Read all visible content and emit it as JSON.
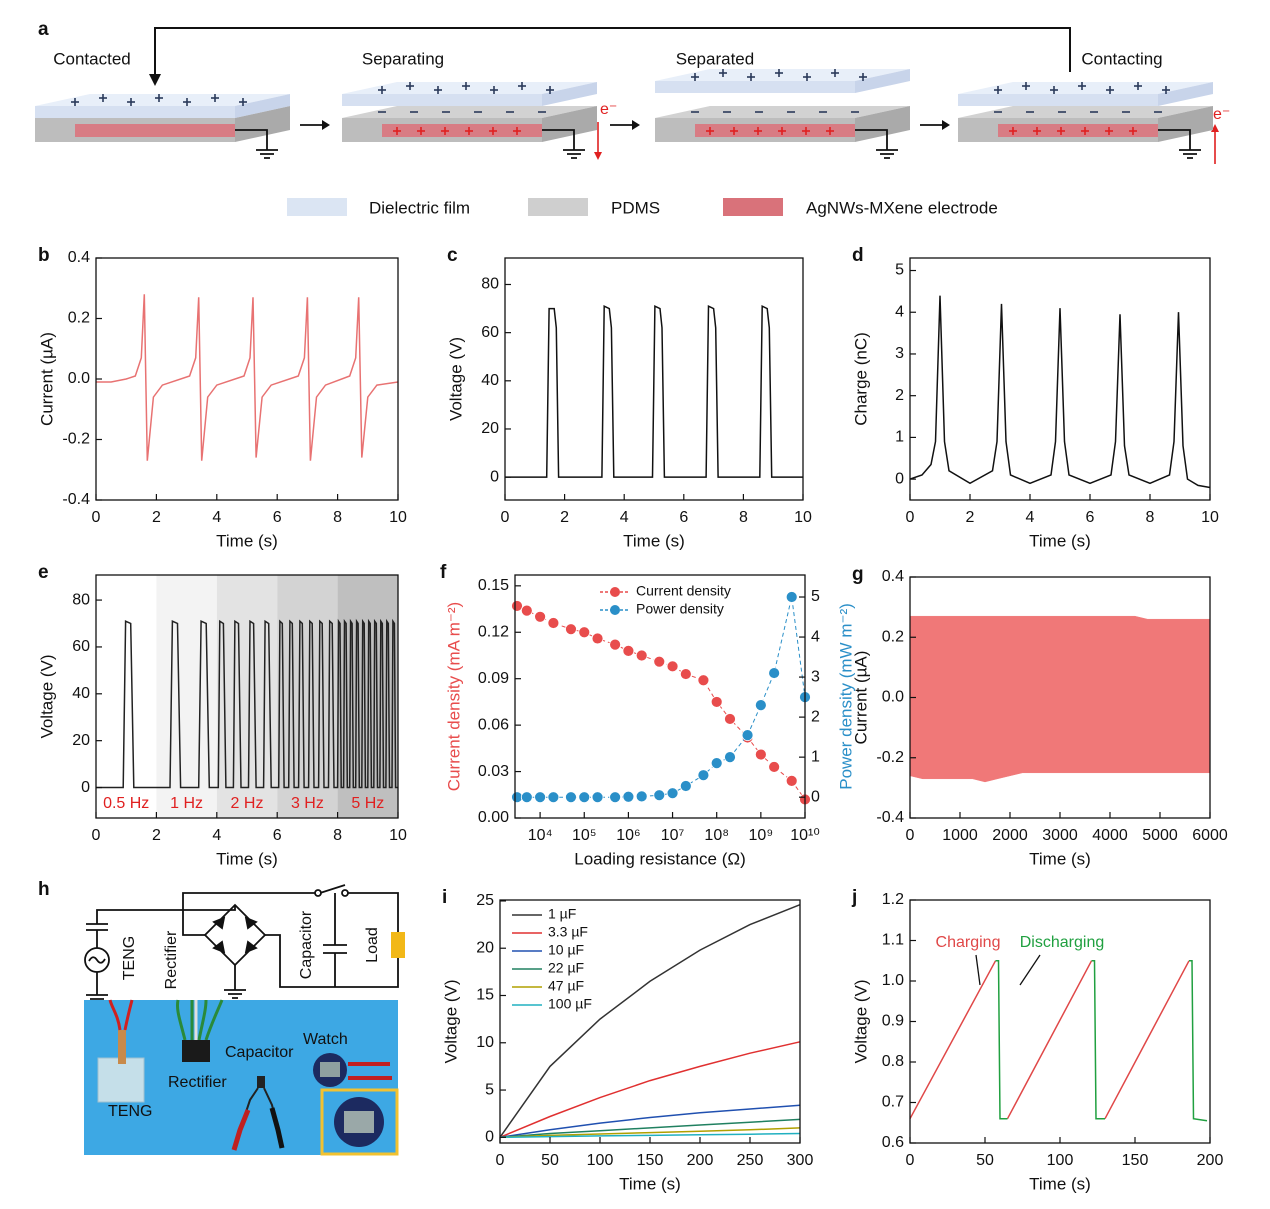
{
  "diagram": {
    "label": "a",
    "stages": [
      "Contacted",
      "Separating",
      "Separated",
      "Contacting"
    ],
    "electron": "e⁻",
    "legend": [
      "Dielectric film",
      "PDMS",
      "AgNWs-MXene electrode"
    ]
  },
  "circuit": {
    "label": "h",
    "parts": [
      "TENG",
      "Rectifier",
      "Capacitor",
      "Load"
    ],
    "photo": [
      "TENG",
      "Rectifier",
      "Capacitor",
      "Watch"
    ]
  },
  "chart_data": [
    {
      "label": "b",
      "type": "line",
      "xlabel": "Time (s)",
      "ylabel": "Current (µA)",
      "x": [
        0,
        0.5,
        1,
        1.3,
        1.5,
        1.6,
        1.65,
        1.7,
        1.9,
        2.2,
        3.1,
        3.3,
        3.4,
        3.45,
        3.5,
        3.7,
        4,
        4.9,
        5.1,
        5.2,
        5.25,
        5.3,
        5.5,
        5.8,
        6.7,
        6.9,
        7,
        7.05,
        7.1,
        7.3,
        7.6,
        8.4,
        8.6,
        8.7,
        8.75,
        8.8,
        9,
        9.3,
        10
      ],
      "series": [
        {
          "color": "#e87272",
          "values": [
            -0.01,
            -0.01,
            0,
            0.01,
            0.07,
            0.28,
            0,
            -0.27,
            -0.06,
            -0.02,
            0.01,
            0.07,
            0.27,
            0,
            -0.27,
            -0.06,
            -0.02,
            0.01,
            0.07,
            0.27,
            0,
            -0.26,
            -0.06,
            -0.02,
            0.01,
            0.07,
            0.27,
            0,
            -0.27,
            -0.06,
            -0.02,
            0.01,
            0.07,
            0.27,
            0,
            -0.26,
            -0.06,
            -0.02,
            -0.01
          ]
        }
      ],
      "xlim": [
        0,
        10
      ],
      "ylim": [
        -0.4,
        0.4
      ],
      "xticks": [
        0,
        2,
        4,
        6,
        8,
        10
      ],
      "yticks": [
        -0.4,
        -0.2,
        {
          "value": 0,
          "label": "0.0"
        },
        0.2,
        0.4
      ]
    },
    {
      "label": "c",
      "type": "line",
      "xlabel": "Time (s)",
      "ylabel": "Voltage (V)",
      "x": [
        0,
        1.4,
        1.48,
        1.65,
        1.72,
        1.8,
        3.25,
        3.33,
        3.5,
        3.57,
        3.65,
        4.95,
        5.03,
        5.2,
        5.27,
        5.35,
        6.75,
        6.83,
        7,
        7.07,
        7.15,
        8.55,
        8.63,
        8.8,
        8.87,
        8.95,
        10
      ],
      "series": [
        {
          "color": "#111111",
          "values": [
            0,
            0,
            70,
            70,
            62,
            0,
            0,
            71,
            70,
            62,
            0,
            0,
            71,
            70,
            62,
            0,
            0,
            71,
            70,
            62,
            0,
            0,
            71,
            70,
            62,
            0,
            0
          ]
        }
      ],
      "xlim": [
        0,
        10
      ],
      "ylim": [
        -9.5,
        91
      ],
      "xticks": [
        0,
        2,
        4,
        6,
        8,
        10
      ],
      "yticks": [
        0,
        20,
        40,
        60,
        80
      ]
    },
    {
      "label": "d",
      "type": "line",
      "xlabel": "Time (s)",
      "ylabel": "Charge (nC)",
      "x": [
        0,
        0.4,
        0.7,
        0.85,
        1,
        1.15,
        1.3,
        2,
        2.75,
        2.9,
        3.05,
        3.2,
        3.35,
        4,
        4.7,
        4.85,
        5,
        5.15,
        5.3,
        6,
        6.7,
        6.85,
        7,
        7.15,
        7.3,
        8,
        8.65,
        8.8,
        8.95,
        9.1,
        9.25,
        9.6,
        10
      ],
      "series": [
        {
          "color": "#111111",
          "values": [
            0,
            0.1,
            0.35,
            0.9,
            4.4,
            0.9,
            0.2,
            -0.1,
            0.2,
            0.9,
            4.2,
            0.9,
            0.1,
            -0.1,
            0.1,
            0.9,
            4.1,
            0.9,
            0.1,
            -0.1,
            0.1,
            0.9,
            3.95,
            0.8,
            0.1,
            -0.1,
            0.1,
            0.9,
            4,
            0.8,
            0,
            -0.15,
            -0.2
          ]
        }
      ],
      "xlim": [
        0,
        10
      ],
      "ylim": [
        -0.5,
        5.3
      ],
      "xticks": [
        0,
        2,
        4,
        6,
        8,
        10
      ],
      "yticks": [
        0,
        1,
        2,
        3,
        4,
        5
      ]
    },
    {
      "label": "e",
      "type": "line",
      "xlabel": "Time (s)",
      "ylabel": "Voltage (V)",
      "band_label_color": "#e02020",
      "bands": [
        {
          "range": [
            0,
            2
          ],
          "label": "0.5 Hz",
          "color": "#ffffff"
        },
        {
          "range": [
            2,
            4
          ],
          "label": "1 Hz",
          "color": "#f3f3f3"
        },
        {
          "range": [
            4,
            6
          ],
          "label": "2 Hz",
          "color": "#e3e3e3"
        },
        {
          "range": [
            6,
            8
          ],
          "label": "3 Hz",
          "color": "#d3d3d3"
        },
        {
          "range": [
            8,
            10
          ],
          "label": "5 Hz",
          "color": "#bfbfbf"
        }
      ],
      "x": [
        0,
        0.9,
        0.98,
        1.15,
        1.25,
        2.45,
        2.53,
        2.7,
        2.8,
        3.4,
        3.48,
        3.65,
        3.75,
        4.05,
        4.1,
        4.22,
        4.3,
        4.55,
        4.6,
        4.72,
        4.8,
        5.05,
        5.1,
        5.22,
        5.3,
        5.55,
        5.6,
        5.72,
        5.8,
        6.05,
        6.09,
        6.17,
        6.23,
        6.38,
        6.42,
        6.5,
        6.56,
        6.71,
        6.75,
        6.83,
        6.89,
        7.04,
        7.08,
        7.16,
        7.22,
        7.37,
        7.41,
        7.49,
        7.55,
        7.7,
        7.74,
        7.82,
        7.88,
        8,
        8.03,
        8.08,
        8.12,
        8.2,
        8.23,
        8.28,
        8.32,
        8.4,
        8.43,
        8.48,
        8.52,
        8.6,
        8.63,
        8.68,
        8.72,
        8.8,
        8.83,
        8.88,
        8.92,
        9,
        9.03,
        9.08,
        9.12,
        9.2,
        9.23,
        9.28,
        9.32,
        9.4,
        9.43,
        9.48,
        9.52,
        9.6,
        9.63,
        9.68,
        9.72,
        9.8,
        9.83,
        9.88,
        9.92,
        10
      ],
      "series": [
        {
          "color": "#222222",
          "values": [
            0,
            0,
            71,
            70,
            0,
            0,
            71,
            70,
            0,
            0,
            71,
            70,
            0,
            0,
            71,
            70,
            0,
            0,
            71,
            70,
            0,
            0,
            71,
            70,
            0,
            0,
            71,
            70,
            0,
            0,
            71,
            70,
            0,
            0,
            71,
            70,
            0,
            0,
            71,
            70,
            0,
            0,
            71,
            70,
            0,
            0,
            71,
            70,
            0,
            0,
            71,
            70,
            0,
            0,
            71,
            70,
            0,
            0,
            71,
            70,
            0,
            0,
            71,
            70,
            0,
            0,
            71,
            70,
            0,
            0,
            71,
            70,
            0,
            0,
            71,
            70,
            0,
            0,
            71,
            70,
            0,
            0,
            71,
            70,
            0,
            0,
            71,
            70,
            0,
            0,
            71,
            70,
            0,
            0
          ]
        }
      ],
      "xlim": [
        0,
        10
      ],
      "ylim": [
        -13,
        90.7
      ],
      "xticks": [
        0,
        2,
        4,
        6,
        8,
        10
      ],
      "yticks": [
        0,
        20,
        40,
        60,
        80
      ]
    },
    {
      "label": "f",
      "type": "scatter",
      "xscale": "log",
      "xlabel": "Loading resistance (Ω)",
      "ylabel": "Current density (mA m⁻²)",
      "y2label": "Power density (mW m⁻²)",
      "ylabel_color": "#e84c4c",
      "y2label_color": "#2a8fc8",
      "legend": "upper right",
      "x": [
        3000,
        5000,
        10000,
        20000,
        50000,
        100000,
        200000,
        500000,
        1000000,
        2000000,
        5000000,
        10000000,
        20000000,
        50000000,
        100000000,
        200000000,
        500000000,
        1000000000,
        2000000000,
        5000000000,
        10000000000
      ],
      "series": [
        {
          "name": "Current density",
          "color": "#e84c4c",
          "values": [
            0.137,
            0.134,
            0.13,
            0.126,
            0.122,
            0.12,
            0.116,
            0.112,
            0.108,
            0.105,
            0.101,
            0.098,
            0.093,
            0.089,
            0.075,
            0.064,
            0.052,
            0.041,
            0.033,
            0.024,
            0.012
          ]
        },
        {
          "name": "Power density",
          "color": "#2a8fc8",
          "axis": "y2",
          "values": [
            0,
            0,
            0,
            0,
            0,
            0,
            0,
            0,
            0.01,
            0.02,
            0.05,
            0.1,
            0.28,
            0.55,
            0.85,
            1,
            1.55,
            2.3,
            3.1,
            5,
            2.5
          ]
        }
      ],
      "xlim": [
        2700,
        10000000000
      ],
      "ylim": [
        0,
        0.157
      ],
      "y2lim": [
        -0.52,
        5.55
      ],
      "xticks": [
        {
          "value": 10000,
          "label": "10⁴"
        },
        {
          "value": 100000,
          "label": "10⁵"
        },
        {
          "value": 1000000,
          "label": "10⁶"
        },
        {
          "value": 10000000,
          "label": "10⁷"
        },
        {
          "value": 100000000,
          "label": "10⁸"
        },
        {
          "value": 1000000000,
          "label": "10⁹"
        },
        {
          "value": 10000000000,
          "label": "10¹⁰"
        }
      ],
      "yticks": [
        {
          "value": 0,
          "label": "0.00"
        },
        0.03,
        0.06,
        0.09,
        0.12,
        0.15
      ],
      "y2ticks": [
        0,
        1,
        2,
        3,
        4,
        5
      ]
    },
    {
      "label": "g",
      "type": "band",
      "xlabel": "Time (s)",
      "ylabel": "Current (µA)",
      "x": [
        0,
        250,
        500,
        750,
        1000,
        1250,
        1500,
        1750,
        2000,
        2250,
        2500,
        2750,
        3000,
        3250,
        3500,
        3750,
        4000,
        4250,
        4500,
        4750,
        5000,
        5250,
        5500,
        5750,
        6000
      ],
      "series": [
        {
          "color": "#f07878",
          "values": [
            0.27,
            0.27,
            0.27,
            0.27,
            0.27,
            0.27,
            0.27,
            0.27,
            0.27,
            0.27,
            0.27,
            0.27,
            0.27,
            0.27,
            0.27,
            0.27,
            0.27,
            0.27,
            0.27,
            0.26,
            0.26,
            0.26,
            0.26,
            0.26,
            0.26
          ]
        },
        {
          "color": "#f07878",
          "values": [
            -0.26,
            -0.27,
            -0.27,
            -0.27,
            -0.27,
            -0.27,
            -0.28,
            -0.27,
            -0.26,
            -0.25,
            -0.25,
            -0.25,
            -0.25,
            -0.25,
            -0.25,
            -0.25,
            -0.25,
            -0.25,
            -0.25,
            -0.25,
            -0.25,
            -0.25,
            -0.25,
            -0.25,
            -0.25
          ]
        }
      ],
      "xlim": [
        0,
        6000
      ],
      "ylim": [
        -0.4,
        0.4
      ],
      "xticks": [
        0,
        1000,
        2000,
        3000,
        4000,
        5000,
        6000
      ],
      "yticks": [
        -0.4,
        -0.2,
        {
          "value": 0,
          "label": "0.0"
        },
        0.2,
        0.4
      ]
    },
    {
      "label": "i",
      "type": "line",
      "xlabel": "Time (s)",
      "ylabel": "Voltage (V)",
      "legend": "upper left",
      "x": [
        0,
        50,
        100,
        150,
        200,
        250,
        300
      ],
      "series": [
        {
          "name": "1 µF",
          "color": "#333333",
          "values": [
            0,
            7.5,
            12.5,
            16.5,
            19.8,
            22.5,
            24.6
          ]
        },
        {
          "name": "3.3 µF",
          "color": "#e03030",
          "values": [
            0,
            2.2,
            4.2,
            6,
            7.5,
            8.9,
            10.1
          ]
        },
        {
          "name": "10 µF",
          "color": "#2050b0",
          "values": [
            0,
            0.8,
            1.5,
            2.1,
            2.6,
            3,
            3.4
          ]
        },
        {
          "name": "22 µF",
          "color": "#208060",
          "values": [
            0,
            0.4,
            0.7,
            1,
            1.3,
            1.6,
            1.9
          ]
        },
        {
          "name": "47 µF",
          "color": "#b0a000",
          "values": [
            0,
            0.2,
            0.35,
            0.5,
            0.65,
            0.8,
            1
          ]
        },
        {
          "name": "100 µF",
          "color": "#20b0c0",
          "values": [
            0,
            0.08,
            0.15,
            0.2,
            0.27,
            0.33,
            0.4
          ]
        }
      ],
      "xlim": [
        0,
        300
      ],
      "ylim": [
        -0.6,
        25.1
      ],
      "xticks": [
        0,
        50,
        100,
        150,
        200,
        250,
        300
      ],
      "yticks": [
        0,
        5,
        10,
        15,
        20,
        25
      ]
    },
    {
      "label": "j",
      "type": "line",
      "xlabel": "Time (s)",
      "ylabel": "Voltage (V)",
      "series": [
        {
          "color": "#e04848",
          "x": [
            0,
            57,
            61,
            65,
            121,
            126,
            130,
            186
          ],
          "values": [
            0.66,
            1.05,
            null,
            0.66,
            1.05,
            null,
            0.66,
            1.05
          ]
        },
        {
          "color": "#20a040",
          "x": [
            57,
            59,
            60,
            65,
            93,
            121,
            123,
            124,
            130,
            158,
            186,
            188,
            189,
            198
          ],
          "values": [
            1.05,
            1.05,
            0.66,
            0.66,
            null,
            1.05,
            1.05,
            0.66,
            0.66,
            null,
            1.05,
            1.05,
            0.66,
            0.655
          ]
        }
      ],
      "annotations": [
        {
          "text": "Charging",
          "color": "#e04848"
        },
        {
          "text": "Discharging",
          "color": "#20a040"
        }
      ],
      "xlim": [
        0,
        200
      ],
      "ylim": [
        0.6,
        1.2
      ],
      "xticks": [
        0,
        50,
        100,
        150,
        200
      ],
      "yticks": [
        0.6,
        0.7,
        0.8,
        0.9,
        {
          "value": 1,
          "label": "1.0"
        },
        1.1,
        1.2
      ]
    }
  ]
}
